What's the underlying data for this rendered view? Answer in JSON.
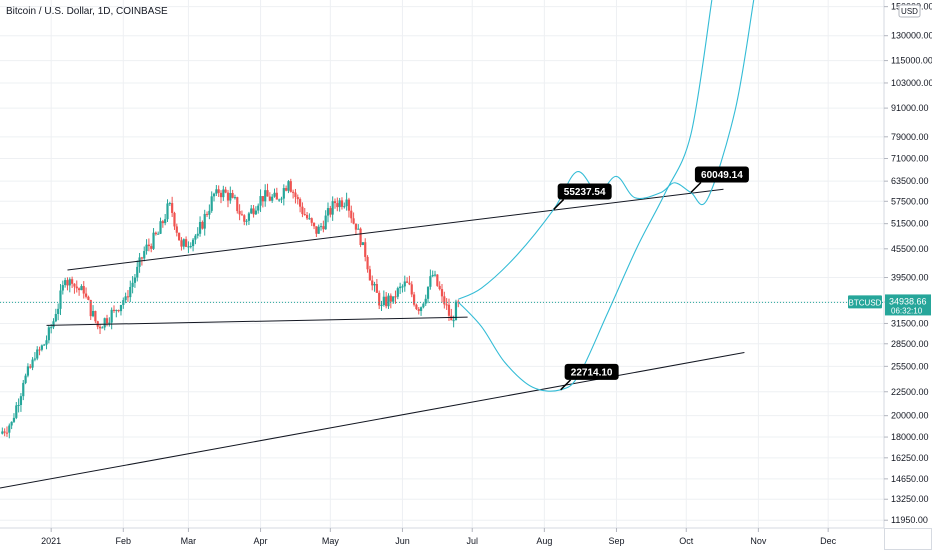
{
  "header": {
    "title": "Bitcoin / U.S. Dollar, 1D, COINBASE"
  },
  "price_axis": {
    "currency": "USD",
    "ticks": [
      "150000.00",
      "130000.00",
      "115000.00",
      "103000.00",
      "91000.00",
      "79000.00",
      "71000.00",
      "63500.00",
      "57500.00",
      "51500.00",
      "45500.00",
      "39500.00",
      "35000.00",
      "31500.00",
      "28500.00",
      "25500.00",
      "22500.00",
      "20000.00",
      "18000.00",
      "16250.00",
      "14650.00",
      "13250.00",
      "11950.00"
    ]
  },
  "time_axis": {
    "ticks": [
      "2021",
      "Feb",
      "Mar",
      "Apr",
      "May",
      "Jun",
      "Jul",
      "Aug",
      "Sep",
      "Oct",
      "Nov",
      "Dec"
    ]
  },
  "last_price": {
    "symbol": "BTCUSD",
    "price": "34938.66",
    "countdown": "06:32:10"
  },
  "callouts": [
    "55237.54",
    "60049.14",
    "22714.10"
  ],
  "colors": {
    "up": "#26a69a",
    "down": "#ef5350",
    "projection": "#34bcd6",
    "trendline": "#131722",
    "grid": "#eef0f3",
    "price_tag": "#26a69a"
  },
  "chart_data": {
    "type": "candlestick",
    "title": "Bitcoin / U.S. Dollar, 1D, COINBASE",
    "y_scale": "log",
    "ylim": [
      11500,
      155000
    ],
    "xlim": [
      "2020-12-10",
      "2021-12-25"
    ],
    "price_series": [
      {
        "date": "2020-12-10",
        "close": 18300
      },
      {
        "date": "2020-12-15",
        "close": 19400
      },
      {
        "date": "2020-12-20",
        "close": 23500
      },
      {
        "date": "2020-12-25",
        "close": 26500
      },
      {
        "date": "2020-12-30",
        "close": 29000
      },
      {
        "date": "2021-01-03",
        "close": 33000
      },
      {
        "date": "2021-01-07",
        "close": 39000
      },
      {
        "date": "2021-01-10",
        "close": 38300
      },
      {
        "date": "2021-01-15",
        "close": 36500
      },
      {
        "date": "2021-01-21",
        "close": 31000
      },
      {
        "date": "2021-01-28",
        "close": 33500
      },
      {
        "date": "2021-02-02",
        "close": 36000
      },
      {
        "date": "2021-02-06",
        "close": 39500
      },
      {
        "date": "2021-02-10",
        "close": 45000
      },
      {
        "date": "2021-02-16",
        "close": 49000
      },
      {
        "date": "2021-02-21",
        "close": 57000
      },
      {
        "date": "2021-02-26",
        "close": 46000
      },
      {
        "date": "2021-03-05",
        "close": 49000
      },
      {
        "date": "2021-03-13",
        "close": 61000
      },
      {
        "date": "2021-03-20",
        "close": 58500
      },
      {
        "date": "2021-03-25",
        "close": 52000
      },
      {
        "date": "2021-04-01",
        "close": 59000
      },
      {
        "date": "2021-04-08",
        "close": 58000
      },
      {
        "date": "2021-04-13",
        "close": 63500
      },
      {
        "date": "2021-04-18",
        "close": 56000
      },
      {
        "date": "2021-04-25",
        "close": 49000
      },
      {
        "date": "2021-05-03",
        "close": 57000
      },
      {
        "date": "2021-05-08",
        "close": 58000
      },
      {
        "date": "2021-05-12",
        "close": 50000
      },
      {
        "date": "2021-05-15",
        "close": 47000
      },
      {
        "date": "2021-05-19",
        "close": 38000
      },
      {
        "date": "2021-05-23",
        "close": 34500
      },
      {
        "date": "2021-05-28",
        "close": 36000
      },
      {
        "date": "2021-06-03",
        "close": 38500
      },
      {
        "date": "2021-06-08",
        "close": 33500
      },
      {
        "date": "2021-06-14",
        "close": 40000
      },
      {
        "date": "2021-06-18",
        "close": 36000
      },
      {
        "date": "2021-06-22",
        "close": 32000
      },
      {
        "date": "2021-06-25",
        "close": 34938.66
      }
    ],
    "trendlines": [
      {
        "from": {
          "date": "2021-01-08",
          "value": 41000
        },
        "to": {
          "date": "2021-10-17",
          "value": 61000
        }
      },
      {
        "from": {
          "date": "2020-12-30",
          "value": 31200
        },
        "to": {
          "date": "2021-06-29",
          "value": 32500
        }
      },
      {
        "from": {
          "date": "2020-12-10",
          "value": 14000
        },
        "to": {
          "date": "2021-10-26",
          "value": 27300
        }
      }
    ],
    "projections": [
      {
        "points": [
          {
            "date": "2021-06-25",
            "value": 35500
          },
          {
            "date": "2021-07-05",
            "value": 37500
          },
          {
            "date": "2021-07-20",
            "value": 44000
          },
          {
            "date": "2021-08-05",
            "value": 55237.54
          },
          {
            "date": "2021-08-15",
            "value": 66500
          },
          {
            "date": "2021-08-24",
            "value": 60000
          },
          {
            "date": "2021-09-01",
            "value": 65000
          },
          {
            "date": "2021-09-09",
            "value": 58500
          },
          {
            "date": "2021-09-20",
            "value": 60000
          },
          {
            "date": "2021-09-26",
            "value": 63000
          },
          {
            "date": "2021-10-03",
            "value": 60049.14
          },
          {
            "date": "2021-10-10",
            "value": 58000
          },
          {
            "date": "2021-10-22",
            "value": 90000
          },
          {
            "date": "2021-10-30",
            "value": 155000
          }
        ]
      },
      {
        "points": [
          {
            "date": "2021-06-25",
            "value": 35000
          },
          {
            "date": "2021-07-05",
            "value": 31000
          },
          {
            "date": "2021-07-15",
            "value": 26000
          },
          {
            "date": "2021-07-27",
            "value": 23000
          },
          {
            "date": "2021-08-08",
            "value": 22714.1
          },
          {
            "date": "2021-08-16",
            "value": 24500
          },
          {
            "date": "2021-08-28",
            "value": 33000
          },
          {
            "date": "2021-09-10",
            "value": 46000
          },
          {
            "date": "2021-09-22",
            "value": 60000
          },
          {
            "date": "2021-10-03",
            "value": 80000
          },
          {
            "date": "2021-10-12",
            "value": 155000
          }
        ]
      }
    ],
    "annotations": [
      {
        "text": "55237.54",
        "date": "2021-08-05",
        "value": 55237.54
      },
      {
        "text": "60049.14",
        "date": "2021-10-03",
        "value": 60049.14
      },
      {
        "text": "22714.10",
        "date": "2021-08-08",
        "value": 22714.1
      }
    ]
  }
}
